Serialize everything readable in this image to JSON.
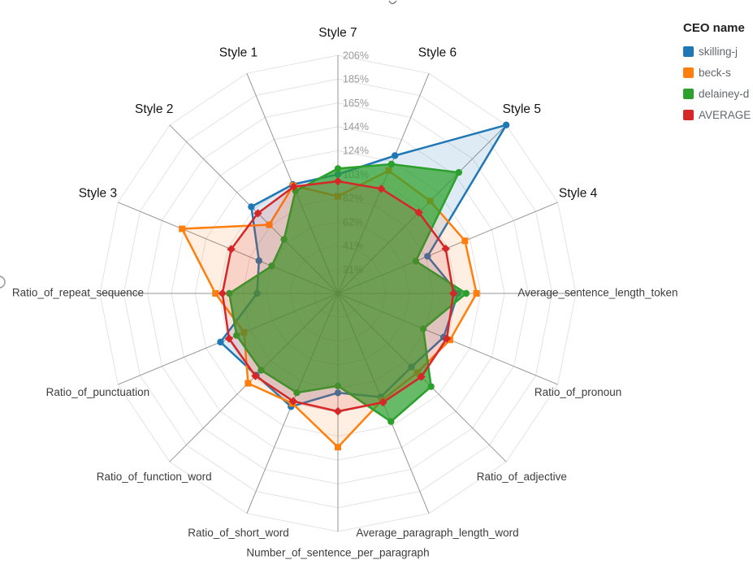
{
  "legend": {
    "title": "CEO name"
  },
  "chart_data": {
    "type": "radar",
    "title": "",
    "legend_title": "CEO name",
    "legend_position": "top-right",
    "grid": "polygon, 10 levels, light gray",
    "rmax": 206,
    "tick_labels": [
      "21%",
      "41%",
      "62%",
      "82%",
      "103%",
      "124%",
      "144%",
      "165%",
      "185%",
      "206%"
    ],
    "axes": [
      "Style 7",
      "Style 6",
      "Style 5",
      "Style 4",
      "Average_sentence_length_token",
      "Ratio_of_pronoun",
      "Ratio_of_adjective",
      "Average_paragraph_length_word",
      "Number_of_sentence_per_paragraph",
      "Ratio_of_short_word",
      "Ratio_of_function_word",
      "Ratio_of_punctuation",
      "Ratio_of_repeat_sequence",
      "Style 3",
      "Style 2",
      "Style 1"
    ],
    "series": [
      {
        "name": "skilling-j",
        "color": "#1f77b4",
        "fill": "rgba(31,119,180,0.15)",
        "symbol": "circle",
        "values": [
          103,
          129,
          206,
          84,
          104,
          99,
          90,
          97,
          86,
          106,
          100,
          110,
          70,
          74,
          106,
          102
        ]
      },
      {
        "name": "beck-s",
        "color": "#ff7f0e",
        "fill": "rgba(255,127,14,0.12)",
        "symbol": "square",
        "values": [
          84,
          115,
          113,
          119,
          120,
          105,
          97,
          100,
          133,
          103,
          110,
          88,
          106,
          146,
          84,
          101
        ]
      },
      {
        "name": "delainey-d",
        "color": "#2ca02c",
        "fill": "rgba(44,160,44,0.72)",
        "symbol": "circle",
        "values": [
          108,
          121,
          148,
          73,
          111,
          80,
          114,
          120,
          80,
          93,
          94,
          95,
          94,
          62,
          66,
          96
        ]
      },
      {
        "name": "AVERAGE",
        "color": "#d62728",
        "fill": "rgba(214,39,40,0.14)",
        "symbol": "diamond",
        "values": [
          97,
          98,
          99,
          101,
          100,
          102,
          102,
          102,
          102,
          101,
          101,
          102,
          100,
          100,
          98,
          100
        ]
      }
    ]
  }
}
